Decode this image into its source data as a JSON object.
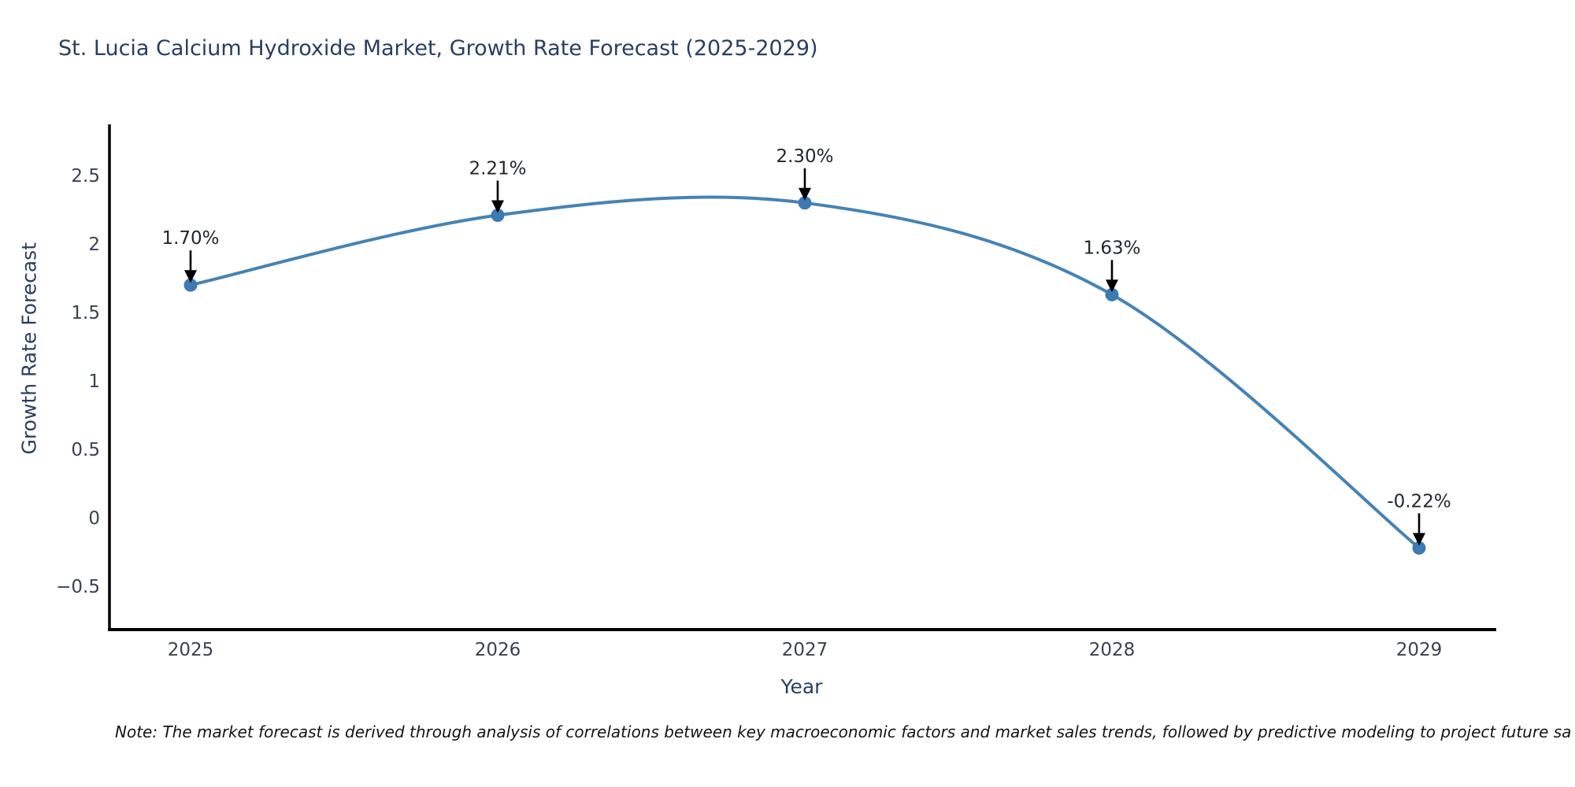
{
  "chart": {
    "title": "St. Lucia Calcium Hydroxide Market, Growth Rate Forecast (2025-2029)",
    "xlabel": "Year",
    "ylabel": "Growth Rate Forecast",
    "note": "Note: The market forecast is derived through analysis of correlations between key macroeconomic factors and market sales trends, followed by predictive modeling to project future sa"
  },
  "chart_data": {
    "type": "line",
    "title": "St. Lucia Calcium Hydroxide Market, Growth Rate Forecast (2025-2029)",
    "xlabel": "Year",
    "ylabel": "Growth Rate Forecast",
    "x": [
      2025,
      2026,
      2027,
      2028,
      2029
    ],
    "series": [
      {
        "name": "Growth Rate Forecast",
        "values": [
          1.7,
          2.21,
          2.3,
          1.63,
          -0.22
        ]
      }
    ],
    "point_labels": [
      "1.70%",
      "2.21%",
      "2.30%",
      "1.63%",
      "-0.22%"
    ],
    "xticks": [
      "2025",
      "2026",
      "2027",
      "2028",
      "2029"
    ],
    "yticks": [
      2.5,
      2,
      1.5,
      1,
      0.5,
      0,
      -0.5
    ],
    "xlim": [
      2024.73,
      2029.25
    ],
    "ylim": [
      -0.82,
      2.87
    ],
    "grid": false,
    "legend": "none",
    "line_smoothing": "spline",
    "annotations": "value labels with black down-arrows above each point",
    "colors": {
      "line": "#4583b5",
      "marker": "#3d79b2",
      "axis": "#000000",
      "arrow": "#000000",
      "title_text": "#2a3f5f",
      "tick_text": "#3b4252",
      "annotation_text": "#23272e",
      "note_text": "#141414",
      "background": "#ffffff"
    }
  }
}
